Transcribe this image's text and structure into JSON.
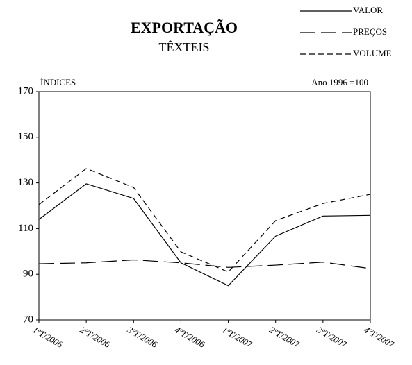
{
  "chart_data": {
    "type": "line",
    "title": "EXPORTAÇÃO",
    "subtitle": "TÊXTEIS",
    "y_label": "ÍNDICES",
    "annotation": "Ano 1996 =100",
    "categories": [
      "1ºT/2006",
      "2ºT/2006",
      "3ºT/2006",
      "4ºT/2006",
      "1ºT/2007",
      "2ºT/2007",
      "3ºT/2007",
      "4ºT/2007"
    ],
    "series": [
      {
        "name": "VALOR",
        "color": "#000000",
        "dash": "none",
        "values": [
          114,
          129.6,
          123.2,
          95,
          85,
          106.7,
          115.5,
          115.8
        ]
      },
      {
        "name": "PREÇOS",
        "color": "#000000",
        "dash": "22 8",
        "values": [
          94.6,
          95,
          96.3,
          95,
          93,
          94,
          95.3,
          92.5
        ]
      },
      {
        "name": "VOLUME",
        "color": "#000000",
        "dash": "8 5",
        "values": [
          120.5,
          136.3,
          128,
          99.8,
          91,
          113.5,
          121,
          125
        ]
      }
    ],
    "ylim": [
      70,
      170
    ],
    "yticks": [
      70,
      90,
      110,
      130,
      150,
      170
    ]
  }
}
